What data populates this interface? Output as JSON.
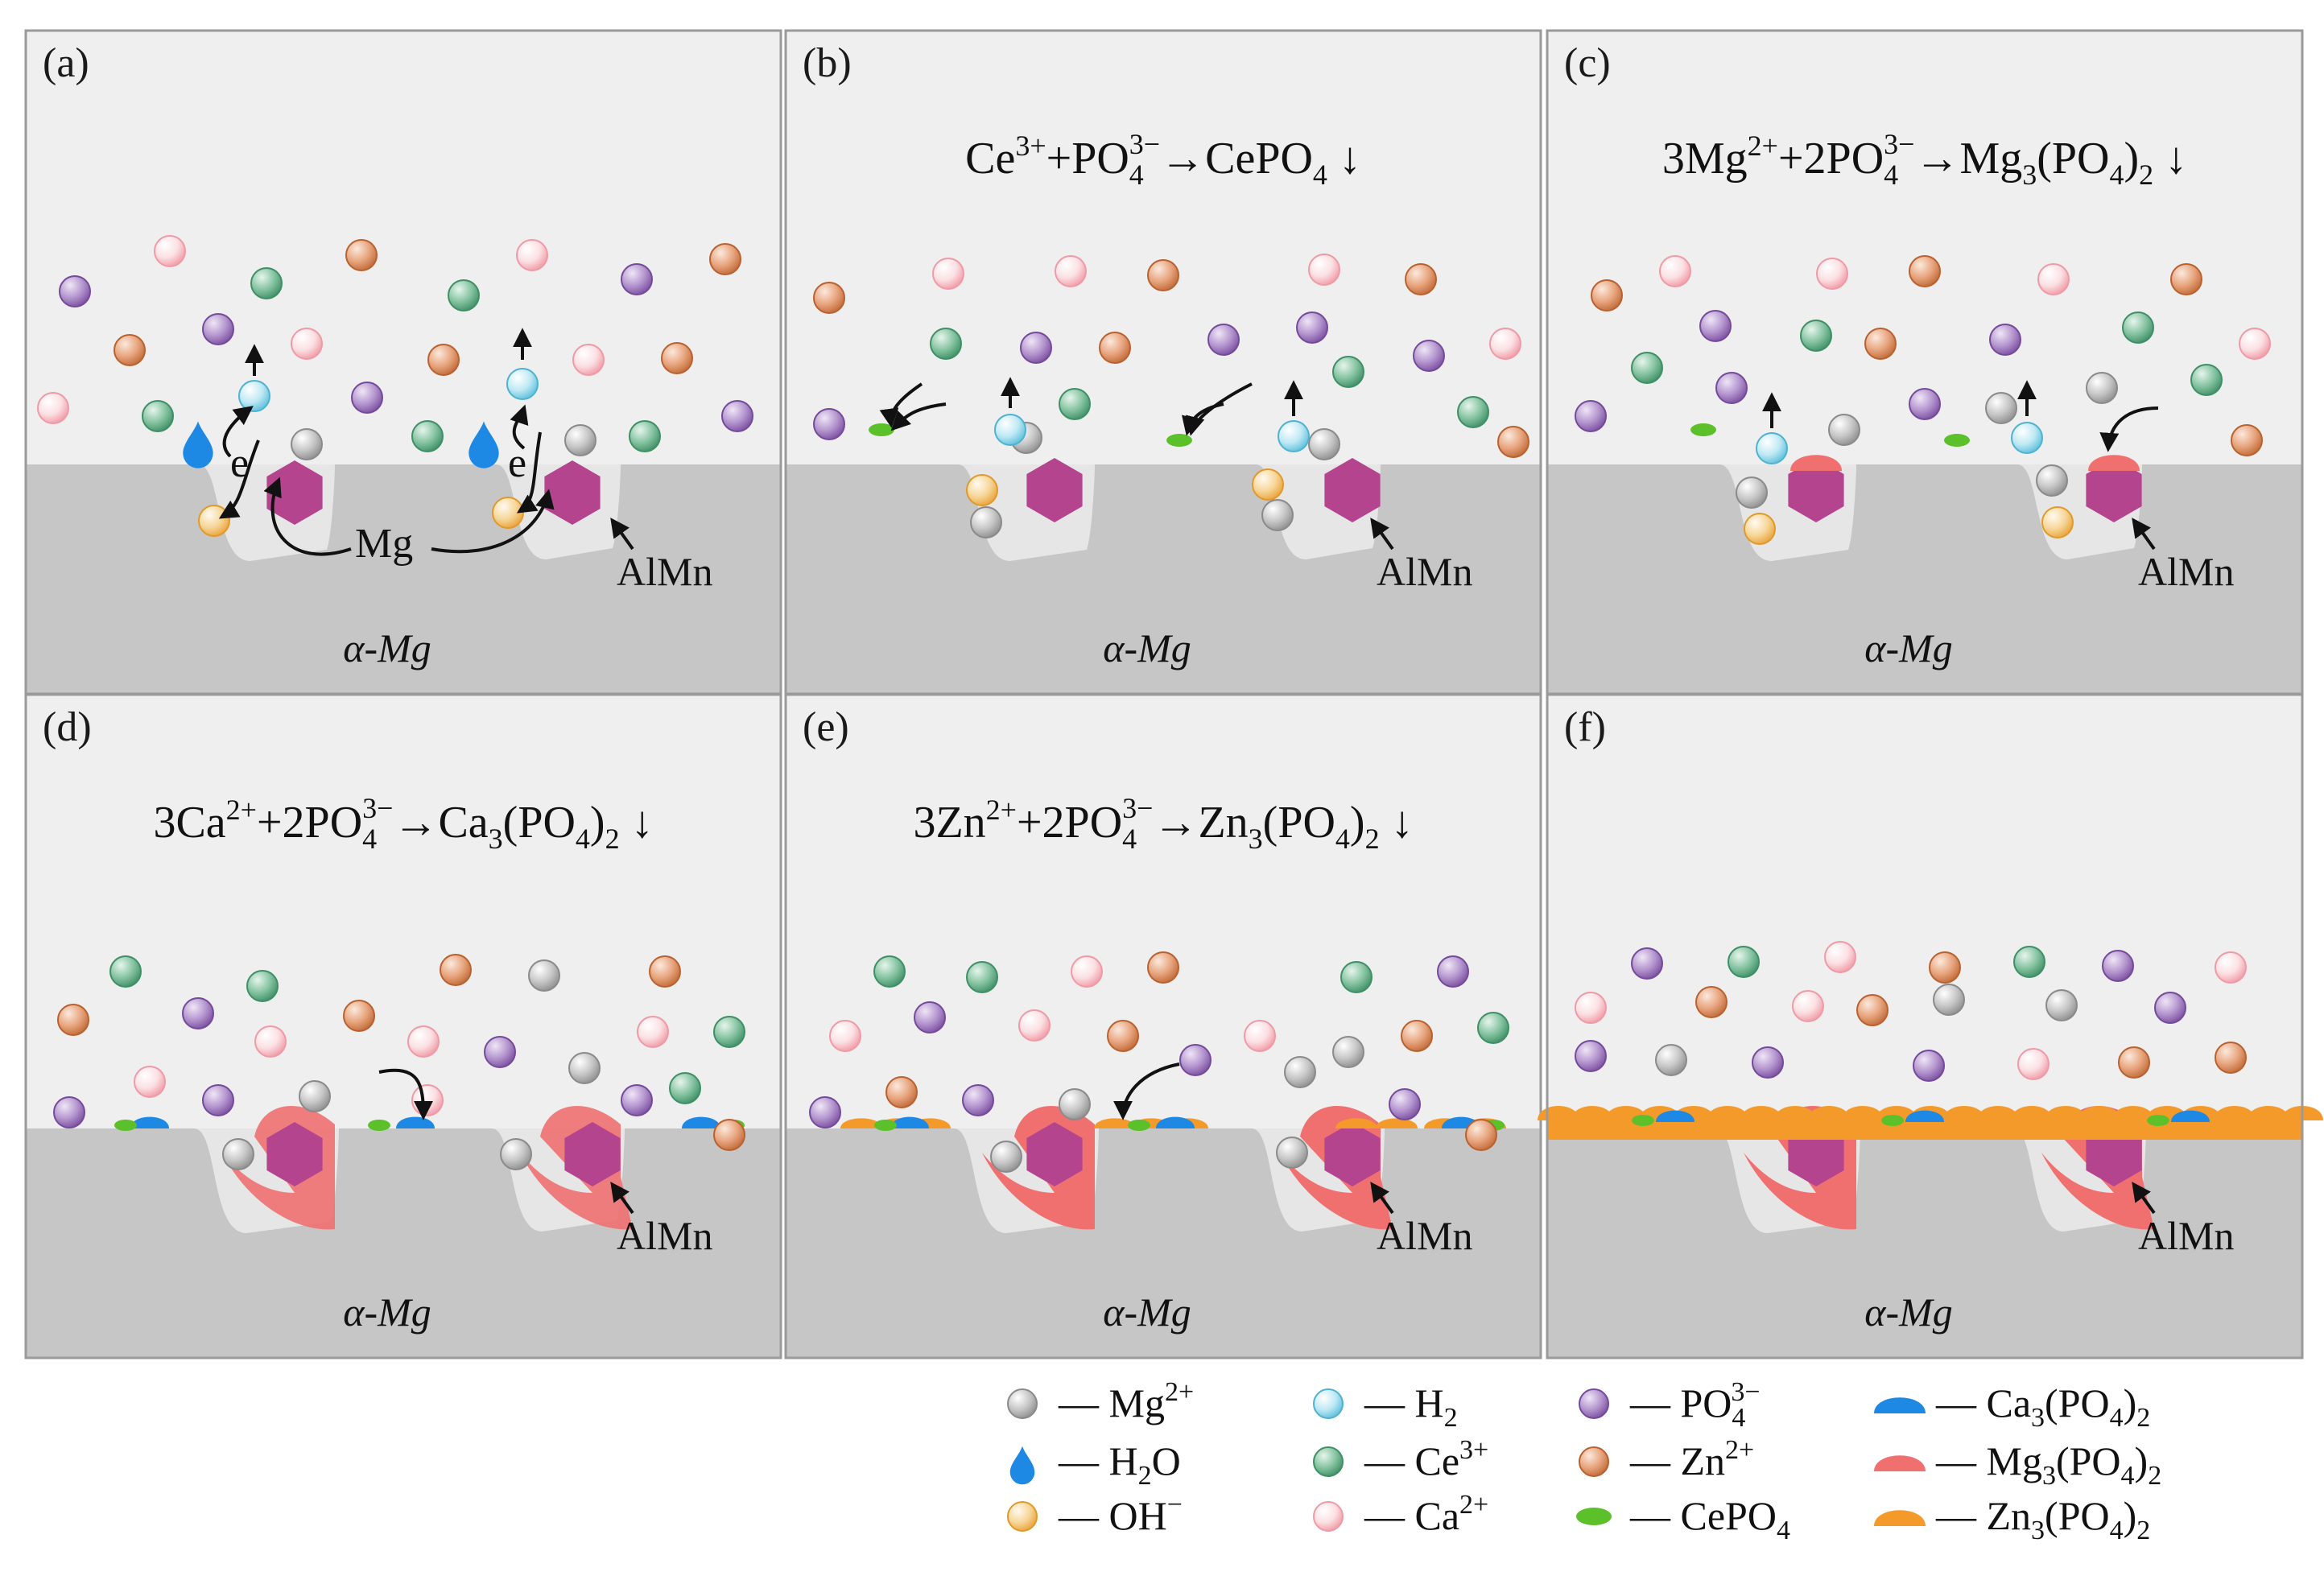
{
  "panels": [
    {
      "label": "(a)",
      "equation": null,
      "substrate": "α-Mg",
      "phase": "AlMn",
      "anode": "Mg",
      "electron": "e"
    },
    {
      "label": "(b)",
      "equation": {
        "l1": "Ce",
        "l1sup": "3+",
        "plus": "+PO",
        "psub": "4",
        "psup": "3−",
        "arrow": "→",
        "product": "CePO",
        "prodsub": "4",
        "down": "↓"
      },
      "substrate": "α-Mg",
      "phase": "AlMn"
    },
    {
      "label": "(c)",
      "equation": {
        "coef1": "3",
        "l1": "Mg",
        "l1sup": "2+",
        "plus": "+2PO",
        "psub": "4",
        "psup": "3−",
        "arrow": "→",
        "product": "Mg",
        "prodsub": "3",
        "prodtail": "(PO",
        "prodsub2": "4",
        "prodend": ")",
        "prodsub3": "2",
        "down": "↓"
      },
      "substrate": "α-Mg",
      "phase": "AlMn"
    },
    {
      "label": "(d)",
      "equation": {
        "coef1": "3",
        "l1": "Ca",
        "l1sup": "2+",
        "plus": "+2PO",
        "psub": "4",
        "psup": "3−",
        "arrow": "→",
        "product": "Ca",
        "prodsub": "3",
        "prodtail": "(PO",
        "prodsub2": "4",
        "prodend": ")",
        "prodsub3": "2",
        "down": "↓"
      },
      "substrate": "α-Mg",
      "phase": "AlMn"
    },
    {
      "label": "(e)",
      "equation": {
        "coef1": "3",
        "l1": "Zn",
        "l1sup": "2+",
        "plus": "+2PO",
        "psub": "4",
        "psup": "3−",
        "arrow": "→",
        "product": "Zn",
        "prodsub": "3",
        "prodtail": "(PO",
        "prodsub2": "4",
        "prodend": ")",
        "prodsub3": "2",
        "down": "↓"
      },
      "substrate": "α-Mg",
      "phase": "AlMn"
    },
    {
      "label": "(f)",
      "equation": null,
      "substrate": "α-Mg",
      "phase": "AlMn"
    }
  ],
  "legend": [
    {
      "key": "mg",
      "dash": "—",
      "text": "Mg",
      "sup": "2+",
      "icon": "ion-ball",
      "color": "#a8a8a8"
    },
    {
      "key": "h2o",
      "dash": "—",
      "text": "H",
      "sub": "2",
      "tail": "O",
      "icon": "water-drop",
      "color": "#1e88e5"
    },
    {
      "key": "oh",
      "dash": "—",
      "text": "OH",
      "sup": "−",
      "icon": "ion-ball",
      "color": "#f2b65a"
    },
    {
      "key": "h2",
      "dash": "—",
      "text": "H",
      "sub": "2",
      "icon": "ion-ball",
      "color": "#7fd0e6"
    },
    {
      "key": "ce",
      "dash": "—",
      "text": "Ce",
      "sup": "3+",
      "icon": "ion-ball",
      "color": "#5fae86"
    },
    {
      "key": "ca",
      "dash": "—",
      "text": "Ca",
      "sup": "2+",
      "icon": "ion-ball",
      "color": "#f4b8bf"
    },
    {
      "key": "po4",
      "dash": "—",
      "text": "PO",
      "sub": "4",
      "sup": "3−",
      "icon": "ion-ball",
      "color": "#9a72b8"
    },
    {
      "key": "zn",
      "dash": "—",
      "text": "Zn",
      "sup": "2+",
      "icon": "ion-ball",
      "color": "#d88a5a"
    },
    {
      "key": "cepo4",
      "dash": "—",
      "text": "CePO",
      "sub": "4",
      "icon": "green-flake",
      "color": "#5cc02a"
    },
    {
      "key": "ca3",
      "dash": "—",
      "text": "Ca",
      "sub": "3",
      "tail": "(PO",
      "sub2": "4",
      "tail2": ")",
      "sub3": "2",
      "icon": "blue-cap",
      "color": "#1e88e5"
    },
    {
      "key": "mg3",
      "dash": "—",
      "text": "Mg",
      "sub": "3",
      "tail": "(PO",
      "sub2": "4",
      "tail2": ")",
      "sub3": "2",
      "icon": "red-cap",
      "color": "#f07070"
    },
    {
      "key": "zn3",
      "dash": "—",
      "text": "Zn",
      "sub": "3",
      "tail": "(PO",
      "sub2": "4",
      "tail2": ")",
      "sub3": "2",
      "icon": "orange-cap",
      "color": "#f39a2a"
    }
  ],
  "colors": {
    "solution": "#efefef",
    "substrate": "#c6c6c6",
    "pit": "#e6e6e6",
    "border": "#9a9a9a",
    "hexagon": "#b5448f",
    "mg": "#a8a8a8",
    "h2o": "#1e88e5",
    "oh": "#f2b65a",
    "h2": "#7fd0e6",
    "ce": "#5fae86",
    "ca": "#f4b8bf",
    "po4": "#9a72b8",
    "zn": "#d88a5a",
    "cepo4": "#5cc02a",
    "ca3": "#1e88e5",
    "mg3": "#f07070",
    "zn3": "#f39a2a"
  }
}
